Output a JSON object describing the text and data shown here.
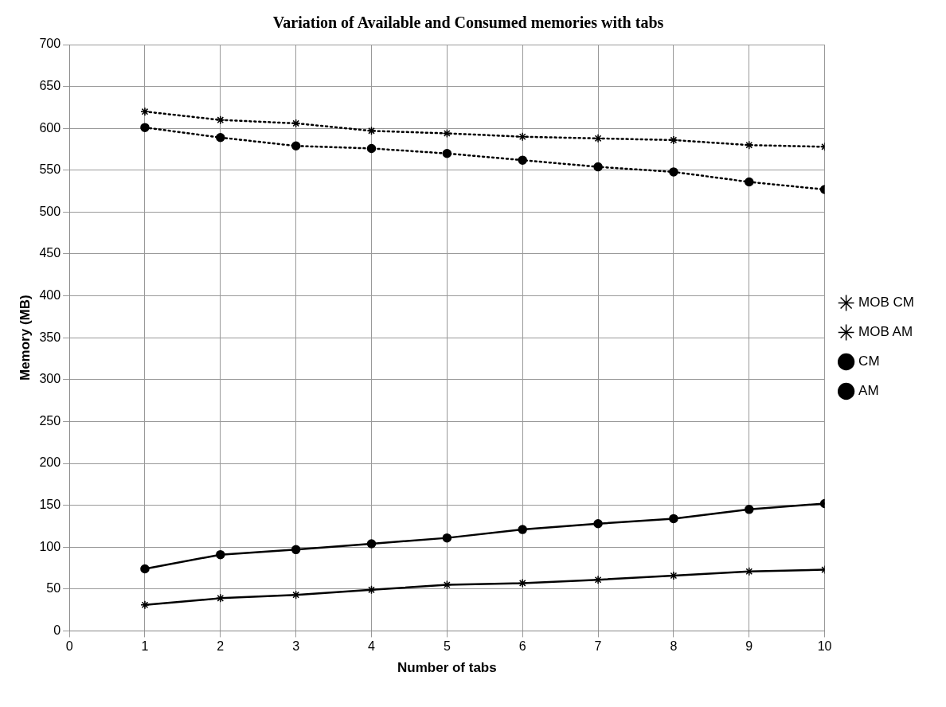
{
  "chart_data": {
    "type": "line",
    "title": "Variation of Available and Consumed memories with tabs",
    "xlabel": "Number of tabs",
    "ylabel": "Memory (MB)",
    "x": [
      1,
      2,
      3,
      4,
      5,
      6,
      7,
      8,
      9,
      10
    ],
    "series": [
      {
        "name": "MOB CM",
        "color": "#000000",
        "marker": "cross",
        "line_style": "solid",
        "values": [
          31,
          39,
          43,
          49,
          55,
          57,
          61,
          66,
          71,
          73
        ]
      },
      {
        "name": "MOB AM",
        "color": "#000000",
        "marker": "cross",
        "line_style": "dotted",
        "values": [
          620,
          610,
          606,
          597,
          594,
          590,
          588,
          586,
          580,
          578
        ]
      },
      {
        "name": "CM",
        "color": "#000000",
        "marker": "circle",
        "line_style": "solid",
        "values": [
          74,
          91,
          97,
          104,
          111,
          121,
          128,
          134,
          145,
          152
        ]
      },
      {
        "name": "AM",
        "color": "#000000",
        "marker": "circle",
        "line_style": "dotted",
        "values": [
          601,
          589,
          579,
          576,
          570,
          562,
          554,
          548,
          536,
          527
        ]
      }
    ],
    "xlim": [
      0,
      10
    ],
    "xticks": [
      0,
      1,
      2,
      3,
      4,
      5,
      6,
      7,
      8,
      9,
      10
    ],
    "ylim": [
      0,
      700
    ],
    "yticks": [
      0,
      50,
      100,
      150,
      200,
      250,
      300,
      350,
      400,
      450,
      500,
      550,
      600,
      650,
      700
    ],
    "grid": true,
    "legend": "right"
  }
}
